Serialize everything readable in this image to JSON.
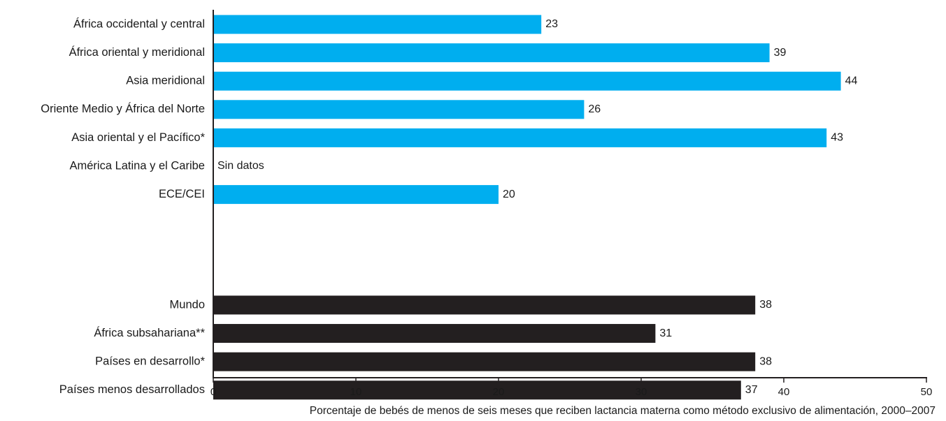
{
  "chart_data": {
    "type": "bar",
    "orientation": "horizontal",
    "xlabel": "Porcentaje de bebés de menos de seis meses que reciben lactancia materna como método exclusivo de alimentación, 2000–2007",
    "ylabel": "",
    "xlim": [
      0,
      50
    ],
    "xticks": [
      "0",
      "10",
      "20",
      "30",
      "40",
      "50"
    ],
    "grid": false,
    "legend": "none",
    "colors": {
      "regions": "#00aeef",
      "aggregates": "#231f20"
    },
    "groups": [
      {
        "color_key": "regions",
        "bars": [
          {
            "category": "África occidental y central",
            "value": 23,
            "label": "23"
          },
          {
            "category": "África oriental y meridional",
            "value": 39,
            "label": "39"
          },
          {
            "category": "Asia meridional",
            "value": 44,
            "label": "44"
          },
          {
            "category": "Oriente Medio y África del Norte",
            "value": 26,
            "label": "26"
          },
          {
            "category": "Asia oriental y el Pacífico*",
            "value": 43,
            "label": "43"
          },
          {
            "category": "América Latina y el Caribe",
            "value": null,
            "label": "Sin datos"
          },
          {
            "category": "ECE/CEI",
            "value": 20,
            "label": "20"
          }
        ]
      },
      {
        "color_key": "aggregates",
        "bars": [
          {
            "category": "Mundo",
            "value": 38,
            "label": "38"
          },
          {
            "category": "África subsahariana**",
            "value": 31,
            "label": "31"
          },
          {
            "category": "Países en desarrollo*",
            "value": 38,
            "label": "38"
          },
          {
            "category": "Países menos desarrollados",
            "value": 37,
            "label": "37"
          }
        ]
      }
    ]
  }
}
